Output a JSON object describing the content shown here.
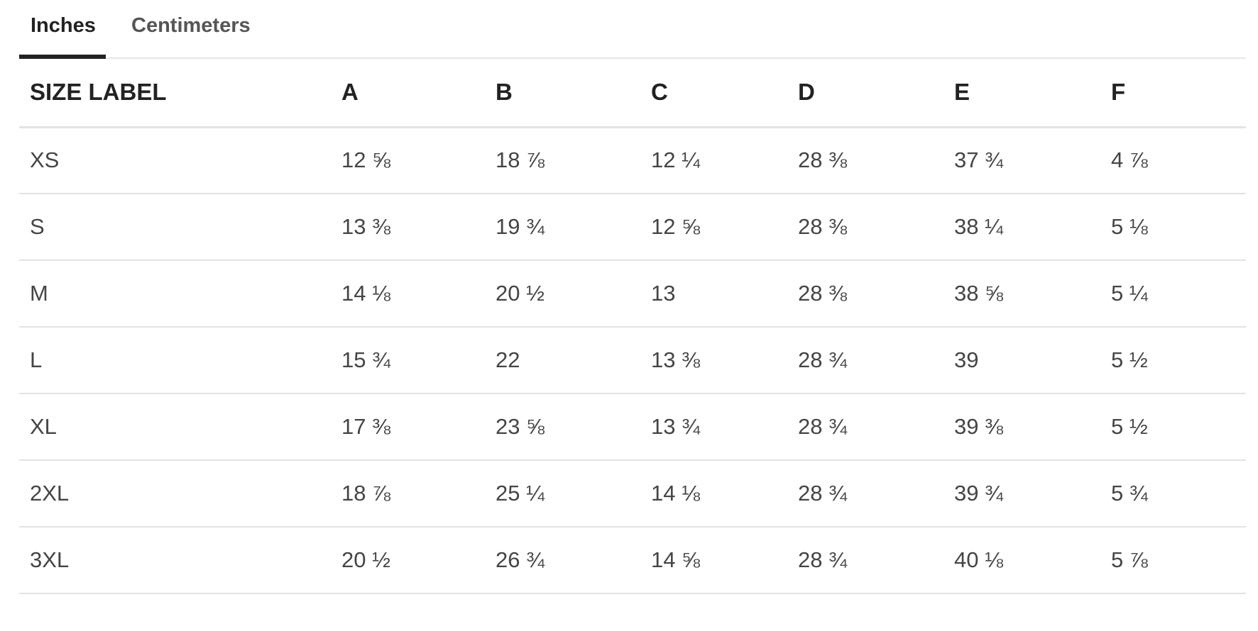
{
  "tabs": [
    {
      "label": "Inches",
      "active": true
    },
    {
      "label": "Centimeters",
      "active": false
    }
  ],
  "table": {
    "headers": [
      "SIZE LABEL",
      "A",
      "B",
      "C",
      "D",
      "E",
      "F"
    ],
    "rows": [
      [
        "XS",
        "12 ⅝",
        "18 ⅞",
        "12 ¼",
        "28 ⅜",
        "37 ¾",
        "4 ⅞"
      ],
      [
        "S",
        "13 ⅜",
        "19 ¾",
        "12 ⅝",
        "28 ⅜",
        "38 ¼",
        "5 ⅛"
      ],
      [
        "M",
        "14 ⅛",
        "20 ½",
        "13",
        "28 ⅜",
        "38 ⅝",
        "5 ¼"
      ],
      [
        "L",
        "15 ¾",
        "22",
        "13 ⅜",
        "28 ¾",
        "39",
        "5 ½"
      ],
      [
        "XL",
        "17 ⅜",
        "23 ⅝",
        "13 ¾",
        "28 ¾",
        "39 ⅜",
        "5 ½"
      ],
      [
        "2XL",
        "18 ⅞",
        "25 ¼",
        "14 ⅛",
        "28 ¾",
        "39 ¾",
        "5 ¾"
      ],
      [
        "3XL",
        "20 ½",
        "26 ¾",
        "14 ⅝",
        "28 ¾",
        "40 ⅛",
        "5 ⅞"
      ]
    ]
  },
  "colors": {
    "active_tab": "#222222",
    "inactive_tab": "#555555",
    "cell_text": "#454545",
    "divider": "#e3e3e3"
  }
}
